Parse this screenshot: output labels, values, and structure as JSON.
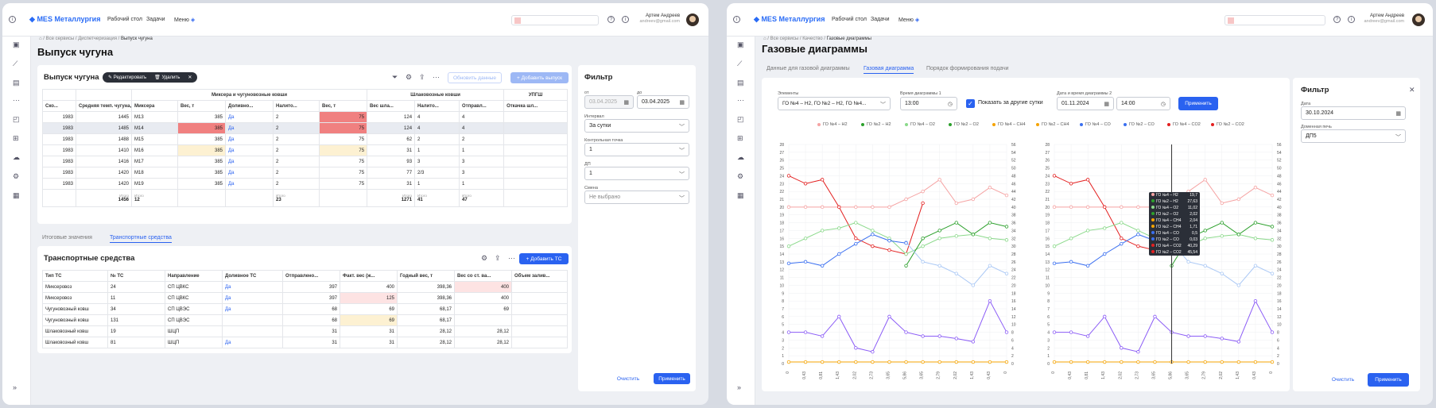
{
  "app": {
    "name": "MES Металлургия",
    "nav": [
      "Рабочий стол",
      "Задачи",
      "Меню"
    ],
    "user": "Артем Андреев",
    "email": "andreev@gmail.com"
  },
  "left": {
    "breadcrumb": [
      "Все сервисы",
      "Диспетчеризация",
      "Выпуск чугуна"
    ],
    "page_title": "Выпуск чугуна",
    "card_title": "Выпуск чугуна",
    "pill": {
      "edit": "Редактировать",
      "delete": "Удалить"
    },
    "btn_refresh": "Обновить данные",
    "btn_add": "+ Добавить выпуск",
    "groups": [
      "Миксера и чугуновозные ковши",
      "Шлаковозные ковши",
      "УПГШ"
    ],
    "cols": [
      "Ско...",
      "Средняя темп. чугуна, °C",
      "Миксера",
      "Вес, т",
      "Доливно...",
      "Налито...",
      "Вес, т",
      "Вес шла...",
      "Налито...",
      "Отправл...",
      "Откачка шл..."
    ],
    "rows": [
      [
        "1983",
        "1445",
        "M13",
        "385",
        "Да",
        "2",
        "75",
        "124",
        "4",
        "4",
        ""
      ],
      [
        "1983",
        "1485",
        "M14",
        "385",
        "Да",
        "2",
        "75",
        "124",
        "4",
        "4",
        ""
      ],
      [
        "1983",
        "1488",
        "M15",
        "385",
        "Да",
        "2",
        "75",
        "62",
        "2",
        "2",
        ""
      ],
      [
        "1983",
        "1410",
        "M16",
        "385",
        "Да",
        "2",
        "75",
        "31",
        "1",
        "1",
        ""
      ],
      [
        "1983",
        "1416",
        "M17",
        "385",
        "Да",
        "2",
        "75",
        "93",
        "3",
        "3",
        ""
      ],
      [
        "1983",
        "1420",
        "M18",
        "385",
        "Да",
        "2",
        "75",
        "77",
        "2/3",
        "3",
        ""
      ],
      [
        "1983",
        "1420",
        "M19",
        "385",
        "Да",
        "2",
        "75",
        "31",
        "1",
        "1",
        ""
      ]
    ],
    "totals": {
      "label": "Итого",
      "t1": "1456",
      "t2": "12",
      "t3": "23",
      "t4": "1271",
      "t5": "41",
      "t6": "47"
    },
    "tabs": [
      "Итоговые значения",
      "Транспортные средства"
    ],
    "ts_title": "Транспортные средства",
    "ts_add": "+ Добавить ТС",
    "ts_cols": [
      "Тип ТС",
      "№ ТС",
      "Направление",
      "Доливное ТС",
      "Отправлено...",
      "Факт. вес (ж...",
      "Годный вес, т",
      "Вес со ст. ва...",
      "Объем залив..."
    ],
    "ts_rows": [
      [
        "Миксеровоз",
        "24",
        "СП ЦВКС",
        "Да",
        "397",
        "400",
        "398,36",
        "400",
        ""
      ],
      [
        "Миксеровоз",
        "11",
        "СП ЦВКС",
        "Да",
        "397",
        "125",
        "398,36",
        "400",
        ""
      ],
      [
        "Чугуновозный ковш",
        "34",
        "СП ЦВЭС",
        "Да",
        "68",
        "69",
        "68,17",
        "69",
        ""
      ],
      [
        "Чугуновозный ковш",
        "131",
        "СП ЦВЭС",
        "",
        "68",
        "69",
        "68,17",
        "",
        ""
      ],
      [
        "Шлаковозный ковш",
        "19",
        "ШЦП",
        "",
        "31",
        "31",
        "28,12",
        "28,12",
        ""
      ],
      [
        "Шлаковозный ковш",
        "81",
        "ШЦП",
        "Да",
        "31",
        "31",
        "28,12",
        "28,12",
        ""
      ]
    ],
    "filter": {
      "title": "Фильтр",
      "from_label": "от",
      "from": "03.04.2025",
      "to_label": "до",
      "to": "03.04.2025",
      "interval_label": "Интервал",
      "interval": "За сутки",
      "cp_label": "Контрольная точка",
      "cp": "1",
      "dp_label": "ДП",
      "dp": "1",
      "shift_label": "Смена",
      "shift": "Не выбрано",
      "clear": "Очистить",
      "apply": "Применить"
    }
  },
  "right": {
    "breadcrumb": [
      "Все сервисы",
      "Качество",
      "Газовые диаграммы"
    ],
    "page_title": "Газовые диаграммы",
    "tabs": [
      "Данные для газовой диаграммы",
      "Газовая диаграмма",
      "Порядок формирования подачи"
    ],
    "elements_label": "Элементы",
    "elements": "ГО №4 – H2, ГО №2 – H2, ГО №4...",
    "time1_label": "Время диаграммы 1",
    "time1": "13:00",
    "other_days": "Показать за другие сутки",
    "dt2_label": "Дата и время диаграммы 2",
    "date2": "01.11.2024",
    "time2": "14:00",
    "apply": "Применить",
    "legend": [
      "ГО №4 – H2",
      "ГО №2 – H2",
      "ГО №4 – O2",
      "ГО №2 – O2",
      "ГО №4 – CH4",
      "ГО №2 – CH4",
      "ГО №4 – CO",
      "ГО №2 – CO",
      "ГО №4 – CO2",
      "ГО №2 – CO2"
    ],
    "tooltip": [
      [
        "ГО №4 – H2",
        "19,7"
      ],
      [
        "ГО №2 – H2",
        "27,63"
      ],
      [
        "ГО №4 – O2",
        "11,02"
      ],
      [
        "ГО №2 – O2",
        "2,02"
      ],
      [
        "ГО №4 – CH4",
        "2,04"
      ],
      [
        "ГО №2 – CH4",
        "1,71"
      ],
      [
        "ГО №4 – CO",
        "0,5"
      ],
      [
        "ГО №2 – CO",
        "0,03"
      ],
      [
        "ГО №4 – CO2",
        "40,29"
      ],
      [
        "ГО №2 – CO2",
        "45,54"
      ]
    ],
    "filter": {
      "title": "Фильтр",
      "date_label": "Дата",
      "date": "30.10.2024",
      "furnace_label": "Доменная печь",
      "furnace": "ДП5",
      "clear": "Очистить",
      "apply": "Применить"
    }
  },
  "chart_data": [
    {
      "type": "line",
      "x": [
        "0",
        "0,43",
        "0,81",
        "1,43",
        "2,02",
        "2,73",
        "3,65",
        "5,86",
        "3,65",
        "2,79",
        "2,02",
        "1,43",
        "0,43",
        "0"
      ],
      "ylim_left": [
        0,
        28
      ],
      "ylim_right": [
        0,
        56
      ],
      "series": [
        {
          "name": "ГО №4 – H2",
          "color": "#f5a3a3",
          "values": [
            40,
            40,
            40,
            40,
            40,
            40,
            40,
            42,
            44,
            47,
            41,
            42,
            45,
            43
          ]
        },
        {
          "name": "ГО №2 – H2",
          "color": "#e32020",
          "values": [
            48,
            46,
            47,
            40,
            32,
            30,
            29,
            28,
            41,
            null,
            null,
            null,
            null,
            null
          ]
        },
        {
          "name": "ГО №4 – O2",
          "color": "#8ad98a",
          "values": [
            15,
            16,
            17,
            17.3,
            18,
            17,
            16,
            14,
            15,
            16,
            16.3,
            16.5,
            16,
            15.8
          ]
        },
        {
          "name": "ГО №2 – O2",
          "color": "#2ca02c",
          "values": [
            null,
            null,
            null,
            null,
            null,
            null,
            null,
            12.5,
            16,
            17,
            18,
            16.5,
            18,
            17.5
          ]
        },
        {
          "name": "ГО №4 – CH4",
          "color": "#f5a300",
          "values": [
            0.2,
            0.2,
            0.2,
            0.2,
            0.2,
            0.2,
            0.2,
            0.2,
            0.2,
            0.2,
            0.2,
            0.2,
            0.2,
            0.2
          ]
        },
        {
          "name": "ГО №4 – CO",
          "color": "#aac8f5",
          "values": [
            null,
            null,
            null,
            null,
            null,
            null,
            null,
            15.5,
            13,
            12.5,
            11.5,
            10,
            12.5,
            11.5
          ]
        },
        {
          "name": "ГО №2 – CO",
          "color": "#3a6ff0",
          "values": [
            12.8,
            13,
            12.5,
            14,
            15.3,
            16.5,
            15.7,
            15.4,
            null,
            null,
            null,
            null,
            null,
            null
          ]
        },
        {
          "name": "ГО №4 – CO2",
          "color": "#8b5cf6",
          "values": [
            4,
            4,
            3.5,
            6,
            2,
            1.5,
            6,
            4,
            3.5,
            3.5,
            3.2,
            2.8,
            8,
            4
          ]
        }
      ]
    }
  ]
}
